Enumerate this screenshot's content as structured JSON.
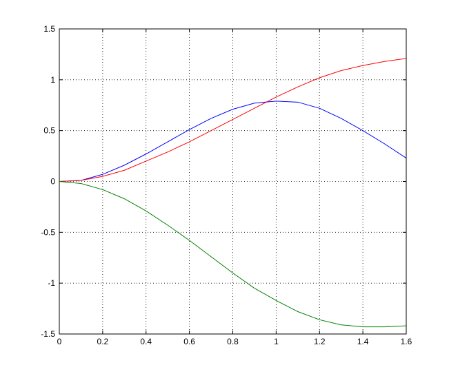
{
  "chart_data": {
    "type": "line",
    "x": [
      0,
      0.1,
      0.2,
      0.3,
      0.4,
      0.5,
      0.6,
      0.7,
      0.8,
      0.9,
      1.0,
      1.1,
      1.2,
      1.3,
      1.4,
      1.5,
      1.6
    ],
    "series": [
      {
        "color": "#0000ff",
        "values": [
          0,
          0.01,
          0.07,
          0.16,
          0.27,
          0.39,
          0.51,
          0.62,
          0.71,
          0.77,
          0.79,
          0.78,
          0.72,
          0.62,
          0.5,
          0.37,
          0.23
        ]
      },
      {
        "color": "#ff0000",
        "values": [
          0,
          0.01,
          0.05,
          0.11,
          0.2,
          0.29,
          0.39,
          0.5,
          0.61,
          0.72,
          0.83,
          0.93,
          1.02,
          1.09,
          1.14,
          1.18,
          1.21
        ]
      },
      {
        "color": "#008000",
        "values": [
          0,
          -0.02,
          -0.08,
          -0.17,
          -0.29,
          -0.43,
          -0.58,
          -0.74,
          -0.9,
          -1.05,
          -1.17,
          -1.28,
          -1.36,
          -1.41,
          -1.43,
          -1.43,
          -1.42
        ]
      }
    ],
    "xlim": [
      0,
      1.6
    ],
    "xticks": [
      0,
      0.2,
      0.4,
      0.6,
      0.8,
      1,
      1.2,
      1.4,
      1.6
    ],
    "ylim": [
      -1.5,
      1.5
    ],
    "yticks": [
      -1.5,
      -1,
      -0.5,
      0,
      0.5,
      1,
      1.5
    ],
    "grid": true
  }
}
